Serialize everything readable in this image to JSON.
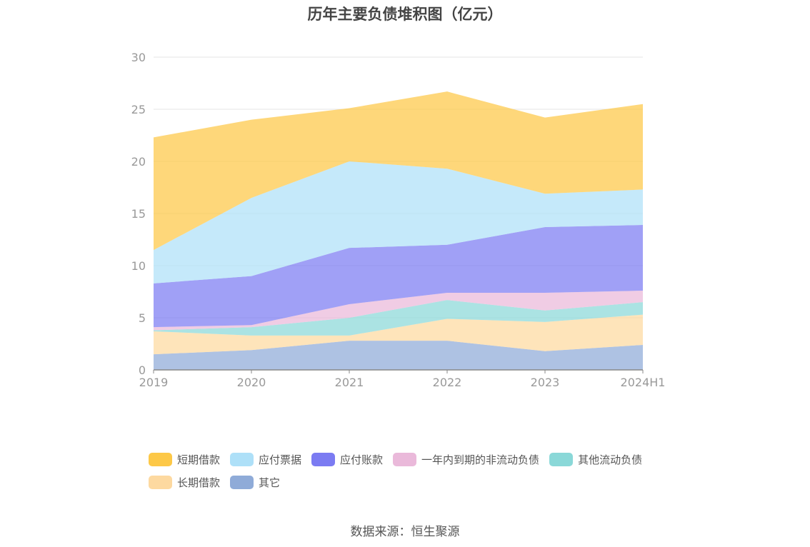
{
  "title": "历年主要负债堆积图（亿元）",
  "source": "数据来源：恒生聚源",
  "chart_data": {
    "type": "area",
    "stacked": true,
    "categories": [
      "2019",
      "2020",
      "2021",
      "2022",
      "2023",
      "2024H1"
    ],
    "ylim": [
      0,
      30
    ],
    "yticks": [
      "0",
      "5",
      "10",
      "15",
      "20",
      "25",
      "30"
    ],
    "grid": true,
    "legend_position": "bottom",
    "series": [
      {
        "name": "其它",
        "color": "#8fabd8",
        "values": [
          1.5,
          1.9,
          2.8,
          2.8,
          1.8,
          2.4
        ]
      },
      {
        "name": "长期借款",
        "color": "#fdd9a0",
        "values": [
          2.2,
          1.4,
          0.5,
          2.1,
          2.8,
          2.9
        ]
      },
      {
        "name": "其他流动负债",
        "color": "#8ad8d8",
        "values": [
          0.1,
          0.8,
          1.7,
          1.8,
          1.1,
          1.2
        ]
      },
      {
        "name": "一年内到期的非流动负债",
        "color": "#eab9da",
        "values": [
          0.3,
          0.2,
          1.3,
          0.7,
          1.7,
          1.1
        ]
      },
      {
        "name": "应付账款",
        "color": "#7b7bf2",
        "values": [
          4.2,
          4.7,
          5.4,
          4.6,
          6.3,
          6.3
        ]
      },
      {
        "name": "应付票据",
        "color": "#aee0f8",
        "values": [
          3.2,
          7.5,
          8.3,
          7.3,
          3.2,
          3.4
        ]
      },
      {
        "name": "短期借款",
        "color": "#fdc847",
        "values": [
          10.8,
          7.5,
          5.1,
          7.4,
          7.3,
          8.2
        ]
      }
    ]
  },
  "legend": [
    {
      "label": "短期借款",
      "color": "#fdc847"
    },
    {
      "label": "应付票据",
      "color": "#aee0f8"
    },
    {
      "label": "应付账款",
      "color": "#7b7bf2"
    },
    {
      "label": "一年内到期的非流动负债",
      "color": "#eab9da"
    },
    {
      "label": "其他流动负债",
      "color": "#8ad8d8"
    },
    {
      "label": "长期借款",
      "color": "#fdd9a0"
    },
    {
      "label": "其它",
      "color": "#8fabd8"
    }
  ]
}
